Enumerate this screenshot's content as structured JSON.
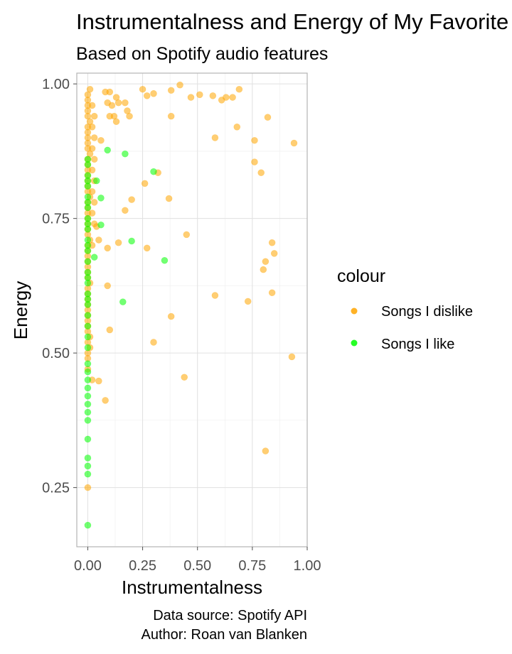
{
  "chart_data": {
    "type": "scatter",
    "title": "Instrumentalness and Energy of My Favorite Songs",
    "subtitle": "Based on Spotify audio features",
    "xlabel": "Instrumentalness",
    "ylabel": "Energy",
    "xlim": [
      -0.05,
      1.0
    ],
    "ylim": [
      0.14,
      1.02
    ],
    "xticks": [
      "0.00",
      "0.25",
      "0.50",
      "0.75",
      "1.00"
    ],
    "yticks": [
      "0.25",
      "0.50",
      "0.75",
      "1.00"
    ],
    "grid": true,
    "legend": {
      "title": "colour",
      "placement": "right"
    },
    "caption": [
      "Data source: Spotify API",
      "Author: Roan van Blanken"
    ],
    "series": [
      {
        "name": "Songs I dislike",
        "color": "#FFA500",
        "points": [
          [
            0.25,
            0.99
          ],
          [
            0.27,
            0.978
          ],
          [
            0.3,
            0.982
          ],
          [
            0.38,
            0.988
          ],
          [
            0.42,
            0.998
          ],
          [
            0.47,
            0.975
          ],
          [
            0.51,
            0.98
          ],
          [
            0.57,
            0.978
          ],
          [
            0.61,
            0.97
          ],
          [
            0.63,
            0.975
          ],
          [
            0.66,
            0.975
          ],
          [
            0.69,
            0.99
          ],
          [
            0.38,
            0.94
          ],
          [
            0.68,
            0.92
          ],
          [
            0.58,
            0.9
          ],
          [
            0.76,
            0.895
          ],
          [
            0.82,
            0.938
          ],
          [
            0.94,
            0.89
          ],
          [
            0.76,
            0.855
          ],
          [
            0.79,
            0.835
          ],
          [
            0.08,
            0.985
          ],
          [
            0.1,
            0.985
          ],
          [
            0.13,
            0.975
          ],
          [
            0.14,
            0.965
          ],
          [
            0.09,
            0.965
          ],
          [
            0.11,
            0.96
          ],
          [
            0.17,
            0.965
          ],
          [
            0.18,
            0.95
          ],
          [
            0.19,
            0.94
          ],
          [
            0.12,
            0.94
          ],
          [
            0.1,
            0.94
          ],
          [
            0.13,
            0.93
          ],
          [
            0.06,
            0.895
          ],
          [
            0.32,
            0.835
          ],
          [
            0.26,
            0.815
          ],
          [
            0.2,
            0.785
          ],
          [
            0.37,
            0.787
          ],
          [
            0.17,
            0.765
          ],
          [
            0.45,
            0.72
          ],
          [
            0.27,
            0.695
          ],
          [
            0.14,
            0.705
          ],
          [
            0.09,
            0.695
          ],
          [
            0.84,
            0.705
          ],
          [
            0.85,
            0.685
          ],
          [
            0.81,
            0.67
          ],
          [
            0.8,
            0.655
          ],
          [
            0.84,
            0.612
          ],
          [
            0.73,
            0.596
          ],
          [
            0.58,
            0.607
          ],
          [
            0.38,
            0.568
          ],
          [
            0.3,
            0.52
          ],
          [
            0.93,
            0.493
          ],
          [
            0.44,
            0.455
          ],
          [
            0.81,
            0.318
          ],
          [
            0.09,
            0.625
          ],
          [
            0.1,
            0.543
          ],
          [
            0.05,
            0.448
          ],
          [
            0.08,
            0.412
          ],
          [
            0.02,
            0.45
          ],
          [
            0.0,
            0.97
          ],
          [
            0.0,
            0.95
          ],
          [
            0.01,
            0.93
          ],
          [
            0.0,
            0.91
          ],
          [
            0.0,
            0.89
          ],
          [
            0.01,
            0.87
          ],
          [
            0.0,
            0.85
          ],
          [
            0.0,
            0.83
          ],
          [
            0.0,
            0.81
          ],
          [
            0.01,
            0.79
          ],
          [
            0.0,
            0.77
          ],
          [
            0.0,
            0.75
          ],
          [
            0.0,
            0.73
          ],
          [
            0.01,
            0.71
          ],
          [
            0.0,
            0.69
          ],
          [
            0.0,
            0.67
          ],
          [
            0.0,
            0.65
          ],
          [
            0.01,
            0.63
          ],
          [
            0.0,
            0.61
          ],
          [
            0.0,
            0.59
          ],
          [
            0.0,
            0.57
          ],
          [
            0.0,
            0.55
          ],
          [
            0.01,
            0.53
          ],
          [
            0.01,
            0.51
          ],
          [
            0.0,
            0.49
          ],
          [
            0.0,
            0.47
          ],
          [
            0.0,
            0.25
          ],
          [
            0.01,
            0.99
          ],
          [
            0.02,
            0.96
          ],
          [
            0.03,
            0.94
          ],
          [
            0.02,
            0.92
          ],
          [
            0.03,
            0.9
          ],
          [
            0.02,
            0.88
          ],
          [
            0.03,
            0.86
          ],
          [
            0.02,
            0.84
          ],
          [
            0.03,
            0.82
          ],
          [
            0.02,
            0.8
          ],
          [
            0.03,
            0.78
          ],
          [
            0.02,
            0.76
          ],
          [
            0.03,
            0.74
          ],
          [
            0.04,
            0.735
          ],
          [
            0.05,
            0.71
          ],
          [
            0.02,
            0.7
          ],
          [
            0.0,
            0.98
          ],
          [
            0.0,
            0.96
          ],
          [
            0.0,
            0.94
          ],
          [
            0.0,
            0.92
          ],
          [
            0.0,
            0.9
          ],
          [
            0.0,
            0.88
          ],
          [
            0.0,
            0.86
          ],
          [
            0.0,
            0.84
          ],
          [
            0.0,
            0.82
          ],
          [
            0.0,
            0.8
          ],
          [
            0.0,
            0.78
          ],
          [
            0.0,
            0.76
          ],
          [
            0.0,
            0.74
          ],
          [
            0.0,
            0.72
          ],
          [
            0.0,
            0.7
          ],
          [
            0.0,
            0.68
          ],
          [
            0.0,
            0.66
          ],
          [
            0.0,
            0.64
          ],
          [
            0.0,
            0.62
          ],
          [
            0.0,
            0.6
          ],
          [
            0.0,
            0.58
          ],
          [
            0.0,
            0.56
          ],
          [
            0.0,
            0.54
          ],
          [
            0.0,
            0.52
          ],
          [
            0.0,
            0.5
          ]
        ]
      },
      {
        "name": "Songs I like",
        "color": "#00FF00",
        "points": [
          [
            0.09,
            0.877
          ],
          [
            0.17,
            0.87
          ],
          [
            0.3,
            0.837
          ],
          [
            0.04,
            0.82
          ],
          [
            0.06,
            0.788
          ],
          [
            0.06,
            0.738
          ],
          [
            0.2,
            0.708
          ],
          [
            0.35,
            0.672
          ],
          [
            0.16,
            0.595
          ],
          [
            0.03,
            0.678
          ],
          [
            0.0,
            0.85
          ],
          [
            0.0,
            0.83
          ],
          [
            0.0,
            0.81
          ],
          [
            0.0,
            0.79
          ],
          [
            0.0,
            0.77
          ],
          [
            0.0,
            0.75
          ],
          [
            0.0,
            0.73
          ],
          [
            0.0,
            0.71
          ],
          [
            0.0,
            0.69
          ],
          [
            0.0,
            0.67
          ],
          [
            0.0,
            0.65
          ],
          [
            0.0,
            0.63
          ],
          [
            0.0,
            0.61
          ],
          [
            0.0,
            0.59
          ],
          [
            0.0,
            0.57
          ],
          [
            0.0,
            0.55
          ],
          [
            0.0,
            0.53
          ],
          [
            0.0,
            0.51
          ],
          [
            0.0,
            0.48
          ],
          [
            0.0,
            0.465
          ],
          [
            0.0,
            0.45
          ],
          [
            0.0,
            0.435
          ],
          [
            0.0,
            0.42
          ],
          [
            0.0,
            0.405
          ],
          [
            0.0,
            0.39
          ],
          [
            0.0,
            0.375
          ],
          [
            0.0,
            0.34
          ],
          [
            0.0,
            0.305
          ],
          [
            0.0,
            0.29
          ],
          [
            0.0,
            0.275
          ],
          [
            0.0,
            0.18
          ],
          [
            0.0,
            0.86
          ],
          [
            0.0,
            0.82
          ],
          [
            0.0,
            0.78
          ],
          [
            0.0,
            0.74
          ],
          [
            0.0,
            0.7
          ],
          [
            0.0,
            0.64
          ],
          [
            0.0,
            0.6
          ]
        ]
      }
    ]
  }
}
